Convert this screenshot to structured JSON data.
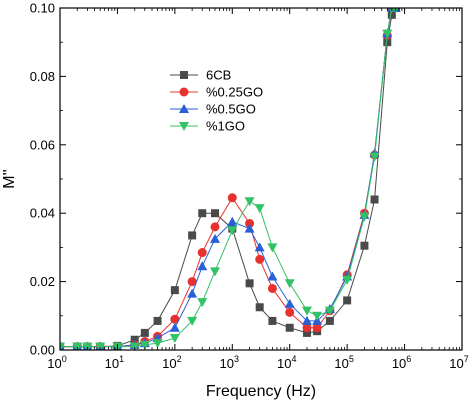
{
  "chart_data": {
    "type": "scatter",
    "title": "",
    "xlabel": "Frequency (Hz)",
    "ylabel": "M''",
    "xscale": "log",
    "xlim": [
      1,
      10000000
    ],
    "ylim": [
      0,
      0.1
    ],
    "grid": false,
    "legend_position": "upper-left",
    "x_ticks": [
      {
        "value": 1,
        "label": "10",
        "exp": "0"
      },
      {
        "value": 10,
        "label": "10",
        "exp": "1"
      },
      {
        "value": 100,
        "label": "10",
        "exp": "2"
      },
      {
        "value": 1000,
        "label": "10",
        "exp": "3"
      },
      {
        "value": 10000,
        "label": "10",
        "exp": "4"
      },
      {
        "value": 100000,
        "label": "10",
        "exp": "5"
      },
      {
        "value": 1000000,
        "label": "10",
        "exp": "6"
      },
      {
        "value": 10000000,
        "label": "10",
        "exp": "7"
      }
    ],
    "y_ticks": [
      {
        "value": 0,
        "label": "0.00"
      },
      {
        "value": 0.02,
        "label": "0.02"
      },
      {
        "value": 0.04,
        "label": "0.04"
      },
      {
        "value": 0.06,
        "label": "0.06"
      },
      {
        "value": 0.08,
        "label": "0.08"
      },
      {
        "value": 0.1,
        "label": "0.10"
      }
    ],
    "x": [
      1,
      2,
      3,
      5,
      10,
      20,
      30,
      50,
      100,
      200,
      300,
      500,
      1000,
      2000,
      3000,
      5000,
      10000,
      20000,
      30000,
      50000,
      100000,
      200000,
      300000,
      500000,
      600000,
      700000
    ],
    "series": [
      {
        "name": "6CB",
        "color": "#4a4a4a",
        "marker": "square",
        "values": [
          0.001,
          0.001,
          0.001,
          0.001,
          0.0012,
          0.003,
          0.005,
          0.0085,
          0.0175,
          0.0335,
          0.04,
          0.04,
          0.0355,
          0.0195,
          0.0125,
          0.0085,
          0.0065,
          0.005,
          0.0055,
          0.0085,
          0.0145,
          0.0305,
          0.044,
          0.09,
          0.098,
          0.1
        ]
      },
      {
        "name": "%0.25GO",
        "color": "#e8312f",
        "marker": "circle",
        "values": [
          0.001,
          0.001,
          0.001,
          0.001,
          0.001,
          0.0015,
          0.0025,
          0.004,
          0.009,
          0.02,
          0.0285,
          0.036,
          0.0445,
          0.037,
          0.0265,
          0.018,
          0.011,
          0.0065,
          0.0065,
          0.0115,
          0.022,
          0.04,
          0.057,
          0.092,
          0.1,
          0.1
        ]
      },
      {
        "name": "%0.5GO",
        "color": "#2a5fd8",
        "marker": "triangle-up",
        "values": [
          0.001,
          0.001,
          0.001,
          0.001,
          0.001,
          0.0015,
          0.002,
          0.0035,
          0.0065,
          0.0165,
          0.0245,
          0.0325,
          0.0375,
          0.0355,
          0.03,
          0.0215,
          0.0135,
          0.0085,
          0.0085,
          0.012,
          0.0215,
          0.0395,
          0.0575,
          0.0925,
          0.1,
          0.1
        ]
      },
      {
        "name": "%1GO",
        "color": "#33c266",
        "marker": "triangle-down",
        "values": [
          0.001,
          0.001,
          0.001,
          0.001,
          0.001,
          0.001,
          0.0015,
          0.002,
          0.0035,
          0.0085,
          0.014,
          0.023,
          0.035,
          0.0435,
          0.0415,
          0.03,
          0.0195,
          0.0115,
          0.01,
          0.0115,
          0.0205,
          0.039,
          0.0565,
          0.0925,
          0.1,
          0.1
        ]
      }
    ]
  }
}
